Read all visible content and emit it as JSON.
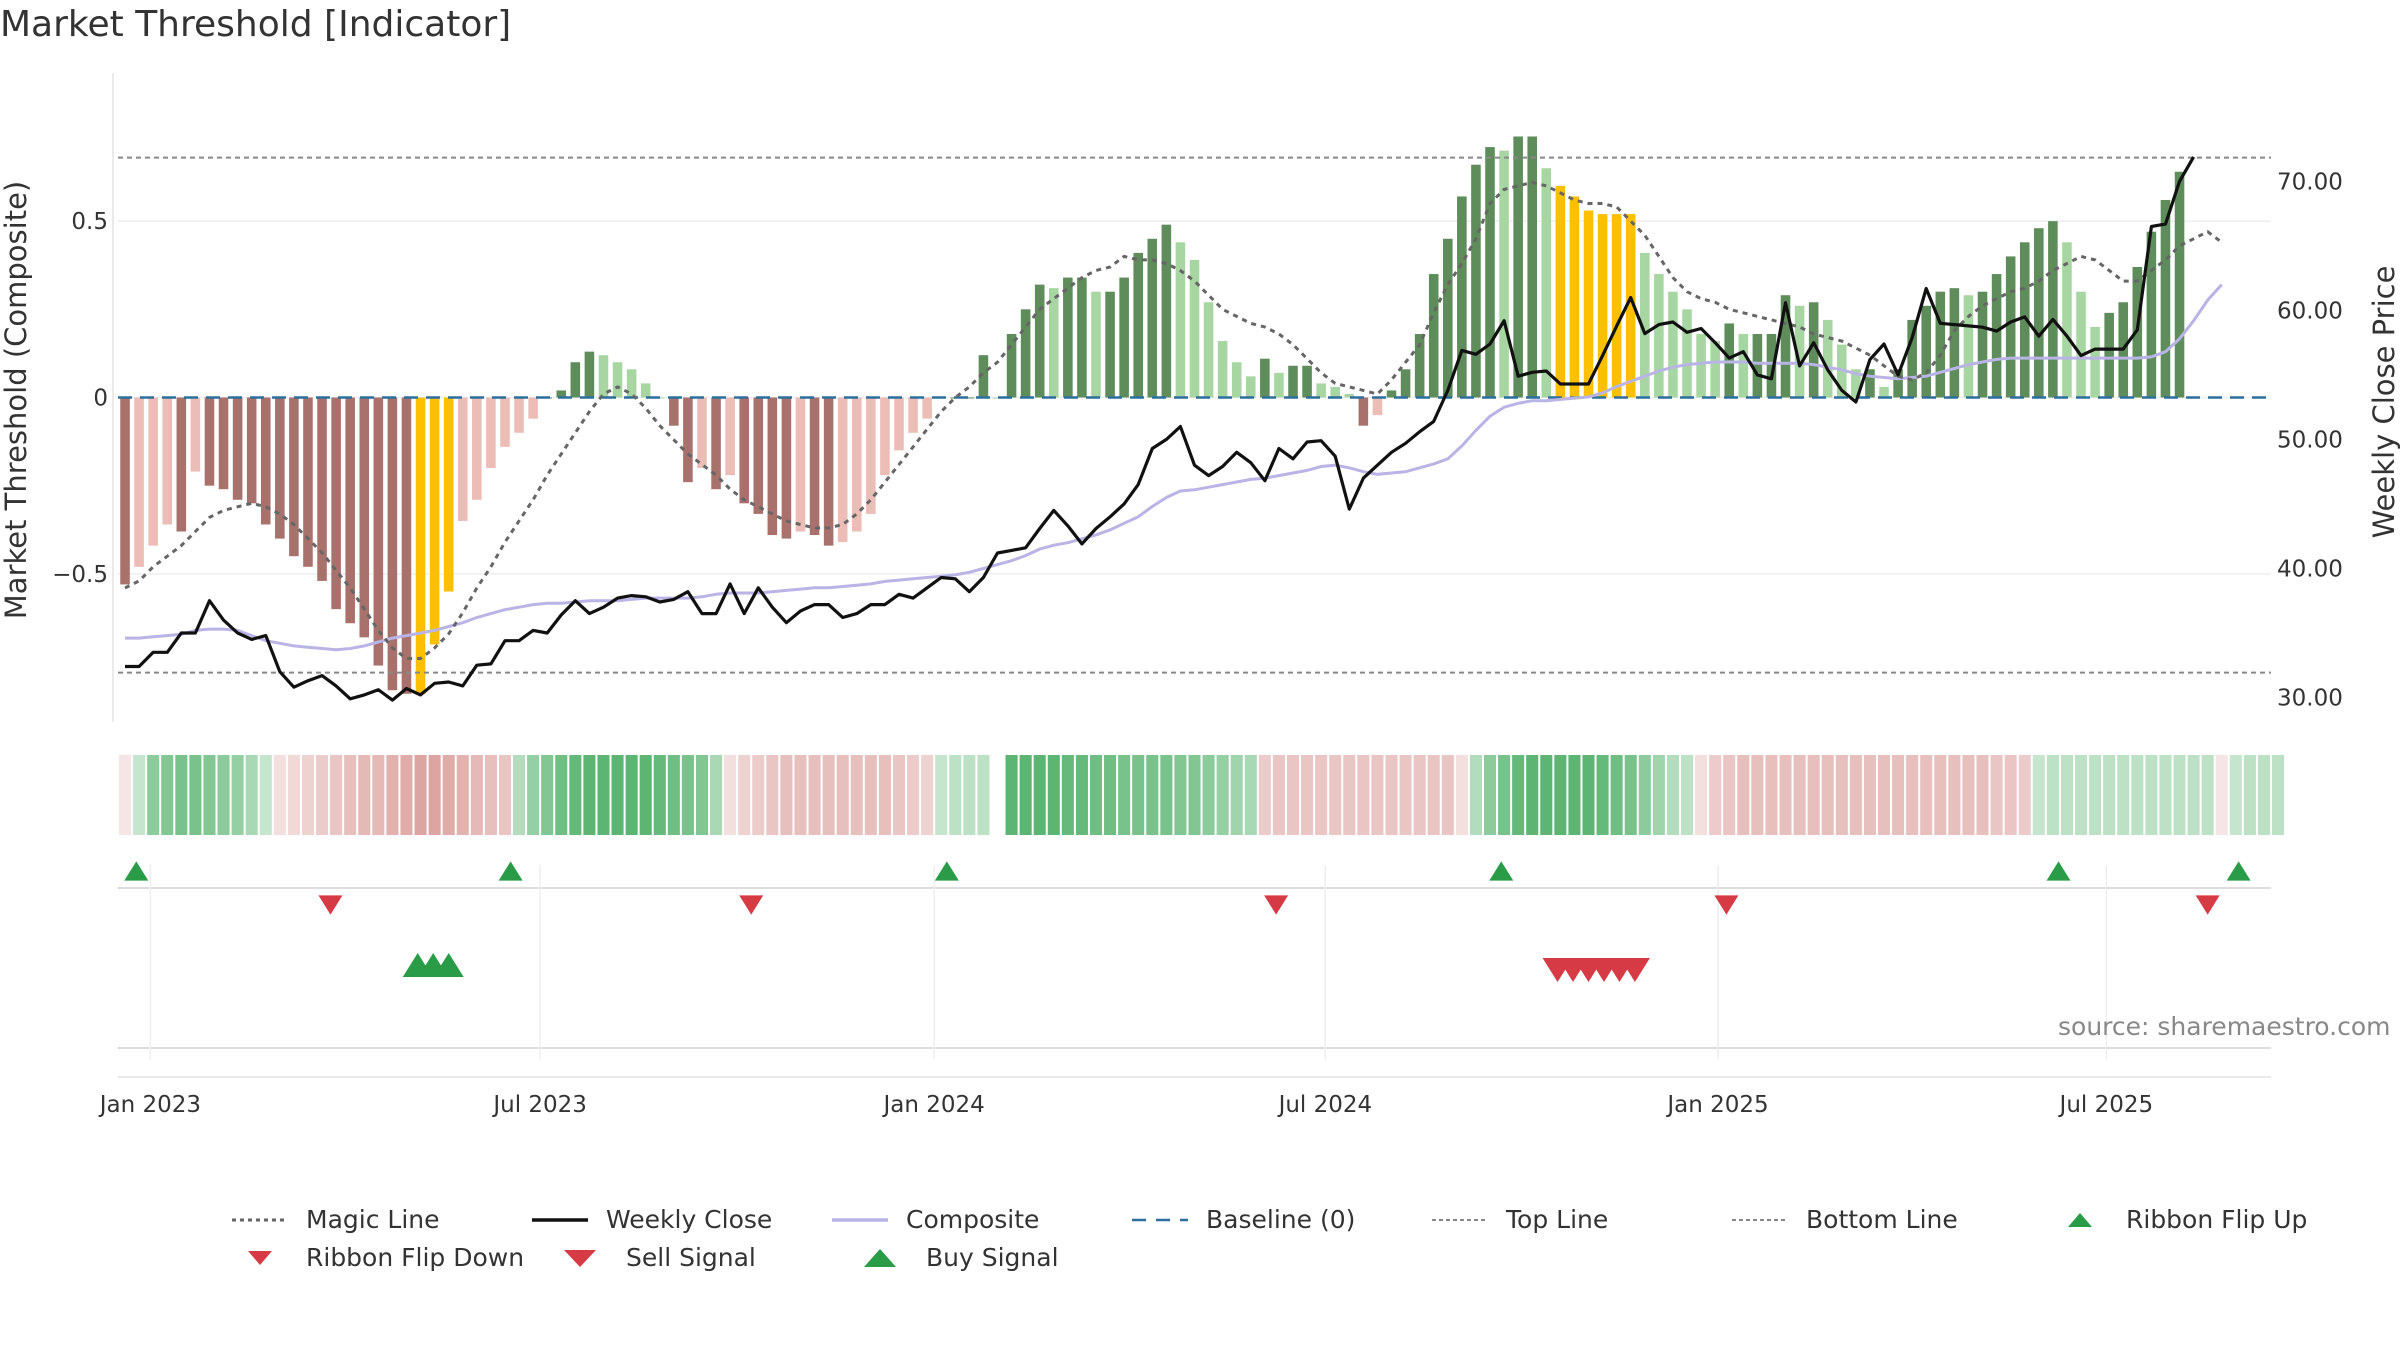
{
  "chart_data": {
    "type": "bar",
    "title": "Market Threshold [Indicator]",
    "y_left_label": "Market Threshold (Composite)",
    "y_right_label": "Weekly Close Price",
    "y_left_ticks": [
      -0.5,
      0,
      0.5
    ],
    "y_left_tick_labels": [
      "−0.5",
      "0",
      "0.5"
    ],
    "y_left_range": [
      -0.92,
      0.92
    ],
    "y_right_ticks": [
      30,
      40,
      50,
      60,
      70
    ],
    "y_right_tick_labels": [
      "30.00",
      "40.00",
      "50.00",
      "60.00",
      "70.00"
    ],
    "y_right_range": [
      28.1,
      78.4
    ],
    "x_tick_labels": [
      "Jan 2023",
      "Jul 2023",
      "Jan 2024",
      "Jul 2024",
      "Jan 2025",
      "Jul 2025"
    ],
    "x_range_weeks": [
      0,
      153
    ],
    "x_tick_positions_weeks": [
      2.3,
      30.0,
      58.0,
      85.8,
      113.7,
      141.3
    ],
    "top_line": 0.68,
    "bottom_line": -0.78,
    "baseline": 0,
    "composite_values": [
      -0.53,
      -0.48,
      -0.42,
      -0.36,
      -0.38,
      -0.21,
      -0.25,
      -0.26,
      -0.29,
      -0.3,
      -0.36,
      -0.4,
      -0.45,
      -0.48,
      -0.52,
      -0.6,
      -0.64,
      -0.68,
      -0.76,
      -0.83,
      -0.84,
      -0.84,
      -0.7,
      -0.55,
      -0.35,
      -0.29,
      -0.2,
      -0.14,
      -0.1,
      -0.06,
      0.0,
      0.02,
      0.1,
      0.13,
      0.12,
      0.1,
      0.08,
      0.04,
      0.0,
      -0.08,
      -0.24,
      -0.2,
      -0.26,
      -0.22,
      -0.3,
      -0.33,
      -0.39,
      -0.4,
      -0.38,
      -0.39,
      -0.42,
      -0.41,
      -0.38,
      -0.33,
      -0.22,
      -0.15,
      -0.1,
      -0.06,
      0.0,
      0.0,
      0.0,
      0.12,
      0.0,
      0.18,
      0.25,
      0.32,
      0.31,
      0.34,
      0.34,
      0.3,
      0.3,
      0.34,
      0.41,
      0.45,
      0.49,
      0.44,
      0.39,
      0.27,
      0.16,
      0.1,
      0.06,
      0.11,
      0.07,
      0.09,
      0.09,
      0.04,
      0.03,
      0.01,
      -0.08,
      -0.05,
      0.02,
      0.08,
      0.18,
      0.35,
      0.45,
      0.57,
      0.66,
      0.71,
      0.7,
      0.74,
      0.74,
      0.65,
      0.6,
      0.57,
      0.53,
      0.52,
      0.52,
      0.52,
      0.41,
      0.35,
      0.3,
      0.25,
      0.18,
      0.16,
      0.21,
      0.18,
      0.18,
      0.18,
      0.29,
      0.26,
      0.27,
      0.22,
      0.15,
      0.08,
      0.08,
      0.03,
      0.08,
      0.22,
      0.26,
      0.3,
      0.31,
      0.29,
      0.3,
      0.35,
      0.4,
      0.44,
      0.48,
      0.5,
      0.44,
      0.3,
      0.2,
      0.24,
      0.27,
      0.37,
      0.47,
      0.56,
      0.64
    ],
    "highlighted_bars": [
      21,
      22,
      23,
      102,
      103,
      104,
      105,
      106,
      107
    ],
    "weekly_close": [
      32.4,
      32.4,
      33.5,
      33.5,
      35.0,
      35.0,
      37.5,
      36.0,
      35.0,
      34.5,
      34.8,
      32.0,
      30.8,
      31.3,
      31.7,
      30.9,
      29.9,
      30.2,
      30.6,
      29.8,
      30.7,
      30.2,
      31.1,
      31.2,
      30.9,
      32.5,
      32.6,
      34.4,
      34.4,
      35.2,
      35.0,
      36.4,
      37.5,
      36.5,
      37.0,
      37.7,
      37.9,
      37.8,
      37.4,
      37.6,
      38.2,
      36.5,
      36.5,
      38.8,
      36.5,
      38.5,
      37.0,
      35.8,
      36.7,
      37.2,
      37.2,
      36.2,
      36.5,
      37.2,
      37.2,
      38.0,
      37.7,
      38.5,
      39.3,
      39.2,
      38.2,
      39.3,
      41.2,
      41.4,
      41.6,
      43.1,
      44.5,
      43.3,
      41.9,
      43.1,
      44.0,
      45.0,
      46.5,
      49.3,
      50.0,
      51.0,
      48.0,
      47.2,
      47.9,
      49.0,
      48.2,
      46.8,
      49.3,
      48.5,
      49.8,
      49.9,
      48.7,
      44.6,
      47.0,
      48.0,
      49.0,
      49.7,
      50.6,
      51.4,
      53.8,
      56.9,
      56.6,
      57.4,
      59.2,
      54.9,
      55.2,
      55.3,
      54.3,
      54.3,
      54.3,
      56.5,
      58.8,
      61.0,
      58.2,
      58.9,
      59.1,
      58.3,
      58.6,
      57.5,
      56.3,
      56.8,
      55.0,
      54.7,
      60.6,
      55.7,
      57.5,
      55.4,
      53.8,
      52.9,
      56.2,
      57.4,
      55.0,
      57.9,
      61.7,
      59.0,
      58.9,
      58.8,
      58.7,
      58.4,
      59.1,
      59.5,
      58.0,
      59.3,
      58.0,
      56.5,
      57.0,
      57.0,
      57.0,
      58.5,
      66.5,
      66.7,
      70.0,
      71.9
    ],
    "composite_line": [
      34.6,
      34.6,
      34.7,
      34.8,
      34.9,
      35.2,
      35.3,
      35.3,
      35.2,
      34.8,
      34.4,
      34.2,
      34.0,
      33.9,
      33.8,
      33.7,
      33.8,
      34.0,
      34.3,
      34.6,
      34.8,
      35.0,
      35.2,
      35.5,
      35.8,
      36.2,
      36.5,
      36.8,
      37.0,
      37.2,
      37.3,
      37.3,
      37.4,
      37.5,
      37.5,
      37.5,
      37.6,
      37.7,
      37.7,
      37.7,
      37.7,
      37.8,
      38.0,
      38.1,
      38.1,
      38.1,
      38.2,
      38.3,
      38.4,
      38.5,
      38.5,
      38.6,
      38.7,
      38.8,
      39.0,
      39.1,
      39.2,
      39.3,
      39.4,
      39.5,
      39.7,
      40.0,
      40.3,
      40.6,
      41.0,
      41.5,
      41.8,
      42.0,
      42.3,
      42.6,
      43.0,
      43.5,
      44.0,
      44.8,
      45.5,
      46.0,
      46.1,
      46.3,
      46.5,
      46.7,
      46.9,
      47.0,
      47.2,
      47.4,
      47.6,
      47.9,
      48.0,
      47.8,
      47.5,
      47.3,
      47.4,
      47.5,
      47.8,
      48.1,
      48.5,
      49.5,
      50.7,
      51.8,
      52.5,
      52.8,
      53.0,
      53.0,
      53.1,
      53.2,
      53.3,
      53.6,
      54.1,
      54.5,
      54.9,
      55.3,
      55.6,
      55.8,
      55.9,
      56.0,
      56.0,
      56.0,
      55.9,
      55.9,
      55.9,
      55.9,
      55.8,
      55.6,
      55.4,
      55.1,
      54.9,
      54.8,
      54.7,
      54.8,
      54.9,
      55.2,
      55.5,
      55.8,
      56.0,
      56.2,
      56.3,
      56.3,
      56.3,
      56.3,
      56.3,
      56.3,
      56.3,
      56.3,
      56.3,
      56.3,
      56.4,
      56.8,
      57.8,
      59.2,
      60.8,
      62.0
    ],
    "magic_line": [
      -0.54,
      -0.52,
      -0.48,
      -0.45,
      -0.42,
      -0.38,
      -0.34,
      -0.32,
      -0.31,
      -0.3,
      -0.31,
      -0.33,
      -0.36,
      -0.4,
      -0.44,
      -0.49,
      -0.54,
      -0.6,
      -0.66,
      -0.71,
      -0.74,
      -0.74,
      -0.71,
      -0.67,
      -0.61,
      -0.54,
      -0.48,
      -0.41,
      -0.35,
      -0.29,
      -0.22,
      -0.16,
      -0.1,
      -0.04,
      0.01,
      0.03,
      0.01,
      -0.03,
      -0.08,
      -0.12,
      -0.16,
      -0.19,
      -0.22,
      -0.26,
      -0.29,
      -0.31,
      -0.33,
      -0.35,
      -0.36,
      -0.37,
      -0.37,
      -0.36,
      -0.33,
      -0.29,
      -0.24,
      -0.19,
      -0.14,
      -0.09,
      -0.04,
      0.0,
      0.03,
      0.07,
      0.1,
      0.15,
      0.2,
      0.25,
      0.28,
      0.31,
      0.34,
      0.36,
      0.37,
      0.4,
      0.39,
      0.39,
      0.38,
      0.36,
      0.33,
      0.29,
      0.25,
      0.23,
      0.21,
      0.2,
      0.18,
      0.15,
      0.11,
      0.07,
      0.04,
      0.03,
      0.02,
      0.01,
      0.05,
      0.1,
      0.15,
      0.24,
      0.32,
      0.38,
      0.45,
      0.55,
      0.59,
      0.6,
      0.61,
      0.6,
      0.58,
      0.56,
      0.55,
      0.55,
      0.54,
      0.5,
      0.46,
      0.4,
      0.34,
      0.3,
      0.28,
      0.27,
      0.25,
      0.24,
      0.23,
      0.22,
      0.21,
      0.2,
      0.18,
      0.17,
      0.16,
      0.14,
      0.12,
      0.09,
      0.06,
      0.05,
      0.07,
      0.12,
      0.19,
      0.23,
      0.26,
      0.28,
      0.3,
      0.31,
      0.33,
      0.36,
      0.38,
      0.4,
      0.39,
      0.36,
      0.33,
      0.33,
      0.36,
      0.39,
      0.43,
      0.45,
      0.47,
      0.44
    ],
    "ribbon": [
      -0.2,
      0.3,
      0.6,
      0.65,
      0.7,
      0.7,
      0.65,
      0.6,
      0.55,
      0.45,
      0.3,
      -0.25,
      -0.3,
      -0.35,
      -0.4,
      -0.45,
      -0.5,
      -0.55,
      -0.55,
      -0.6,
      -0.65,
      -0.7,
      -0.7,
      -0.65,
      -0.6,
      -0.55,
      -0.5,
      -0.45,
      0.4,
      0.55,
      0.65,
      0.75,
      0.8,
      0.85,
      0.85,
      0.85,
      0.85,
      0.85,
      0.8,
      0.75,
      0.7,
      0.65,
      0.45,
      -0.25,
      -0.35,
      -0.4,
      -0.45,
      -0.5,
      -0.5,
      -0.5,
      -0.5,
      -0.5,
      -0.5,
      -0.5,
      -0.5,
      -0.45,
      -0.4,
      -0.35,
      0.3,
      0.35,
      0.35,
      0.35,
      null,
      0.85,
      0.85,
      0.85,
      0.85,
      0.8,
      0.8,
      0.75,
      0.75,
      0.7,
      0.7,
      0.7,
      0.7,
      0.65,
      0.65,
      0.6,
      0.55,
      0.5,
      0.45,
      -0.4,
      -0.45,
      -0.45,
      -0.45,
      -0.45,
      -0.45,
      -0.45,
      -0.45,
      -0.45,
      -0.45,
      -0.45,
      -0.45,
      -0.45,
      -0.45,
      -0.25,
      0.4,
      0.6,
      0.7,
      0.8,
      0.85,
      0.85,
      0.85,
      0.85,
      0.85,
      0.8,
      0.75,
      0.7,
      0.6,
      0.5,
      0.4,
      0.35,
      -0.25,
      -0.4,
      -0.45,
      -0.5,
      -0.5,
      -0.5,
      -0.5,
      -0.5,
      -0.5,
      -0.5,
      -0.5,
      -0.5,
      -0.5,
      -0.5,
      -0.5,
      -0.5,
      -0.5,
      -0.5,
      -0.5,
      -0.5,
      -0.5,
      -0.45,
      -0.45,
      -0.4,
      0.3,
      0.35,
      0.35,
      0.35,
      0.35,
      0.35,
      0.35,
      0.35,
      0.35,
      0.35,
      0.35,
      0.35,
      0.35,
      -0.2,
      0.3,
      0.35,
      0.35,
      0.35
    ],
    "ribbon_flip_up_weeks": [
      1.3,
      27.9,
      58.9,
      98.3,
      137.9,
      150.7
    ],
    "ribbon_flip_down_weeks": [
      15.1,
      45.0,
      82.3,
      114.3,
      148.5
    ],
    "buy_signal_weeks": [
      21.3,
      22.4,
      23.5
    ],
    "sell_signal_weeks": [
      102.3,
      103.4,
      104.5,
      105.6,
      106.7,
      107.8
    ],
    "legend": [
      {
        "key": "magic",
        "label": "Magic Line"
      },
      {
        "key": "close",
        "label": "Weekly Close"
      },
      {
        "key": "composite",
        "label": "Composite"
      },
      {
        "key": "baseline",
        "label": "Baseline (0)"
      },
      {
        "key": "top",
        "label": "Top Line"
      },
      {
        "key": "bottom",
        "label": "Bottom Line"
      },
      {
        "key": "flipup",
        "label": "Ribbon Flip Up"
      },
      {
        "key": "flipdown",
        "label": "Ribbon Flip Down"
      },
      {
        "key": "sell",
        "label": "Sell Signal"
      },
      {
        "key": "buy",
        "label": "Buy Signal"
      }
    ],
    "source": "source: sharemaestro.com"
  },
  "colors": {
    "pos_strong": "#5e8c5a",
    "pos_light": "#a8d6a2",
    "neg_strong": "#a9716b",
    "neg_light": "#ebbdb6",
    "highlight": "#fcc000",
    "close_line": "#111111",
    "composite_line": "#b9b4e6",
    "magic_line": "#666666",
    "baseline": "#2c6f9e",
    "ref_lines": "#888888",
    "buy": "#2a9c48",
    "sell": "#d63a45",
    "ribbon_green": "#3fa85a",
    "ribbon_red": "#cf7f7a"
  }
}
